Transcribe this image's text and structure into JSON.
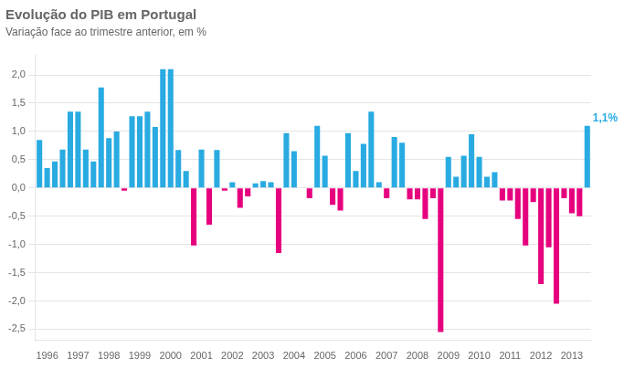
{
  "chart_data": {
    "type": "bar",
    "title": "Evolução do PIB em Portugal",
    "subtitle": "Variação face ao trimestre anterior, em %",
    "annotation": "1,1%",
    "categories": [
      null,
      "1996",
      null,
      null,
      null,
      "1997",
      null,
      null,
      null,
      "1998",
      null,
      null,
      null,
      "1999",
      null,
      null,
      null,
      "2000",
      null,
      null,
      null,
      "2001",
      null,
      null,
      null,
      "2002",
      null,
      null,
      null,
      "2003",
      null,
      null,
      null,
      "2004",
      null,
      null,
      null,
      "2005",
      null,
      null,
      null,
      "2006",
      null,
      null,
      null,
      "2007",
      null,
      null,
      null,
      "2008",
      null,
      null,
      null,
      "2009",
      null,
      null,
      null,
      "2010",
      null,
      null,
      null,
      "2011",
      null,
      null,
      null,
      "2012",
      null,
      null,
      null,
      "2013",
      null,
      null
    ],
    "values": [
      0.85,
      0.35,
      0.47,
      0.68,
      1.35,
      1.35,
      0.68,
      0.47,
      1.78,
      0.88,
      1.0,
      -0.05,
      1.27,
      1.27,
      1.35,
      1.08,
      2.1,
      2.1,
      0.67,
      0.3,
      -1.02,
      0.68,
      -0.65,
      0.67,
      -0.05,
      0.1,
      -0.35,
      -0.15,
      0.08,
      0.12,
      0.1,
      -1.15,
      0.97,
      0.65,
      0.0,
      -0.18,
      1.1,
      0.57,
      -0.3,
      -0.4,
      0.97,
      0.3,
      0.78,
      1.35,
      0.1,
      -0.18,
      0.9,
      0.8,
      -0.2,
      -0.2,
      -0.55,
      -0.18,
      -2.55,
      0.55,
      0.2,
      0.57,
      0.95,
      0.55,
      0.2,
      0.28,
      -0.22,
      -0.22,
      -0.55,
      -1.02,
      -0.25,
      -1.7,
      -1.05,
      -2.05,
      -0.18,
      -0.45,
      -0.5,
      1.1
    ],
    "colors": [
      "#29ABE2",
      "#29ABE2",
      "#29ABE2",
      "#29ABE2",
      "#29ABE2",
      "#29ABE2",
      "#29ABE2",
      "#29ABE2",
      "#29ABE2",
      "#29ABE2",
      "#29ABE2",
      "#E6007E",
      "#29ABE2",
      "#29ABE2",
      "#29ABE2",
      "#29ABE2",
      "#29ABE2",
      "#29ABE2",
      "#29ABE2",
      "#29ABE2",
      "#E6007E",
      "#29ABE2",
      "#E6007E",
      "#29ABE2",
      "#E6007E",
      "#29ABE2",
      "#E6007E",
      "#E6007E",
      "#29ABE2",
      "#29ABE2",
      "#29ABE2",
      "#E6007E",
      "#29ABE2",
      "#29ABE2",
      "#29ABE2",
      "#E6007E",
      "#29ABE2",
      "#29ABE2",
      "#E6007E",
      "#E6007E",
      "#29ABE2",
      "#29ABE2",
      "#29ABE2",
      "#29ABE2",
      "#29ABE2",
      "#E6007E",
      "#29ABE2",
      "#29ABE2",
      "#E6007E",
      "#E6007E",
      "#E6007E",
      "#E6007E",
      "#E6007E",
      "#29ABE2",
      "#29ABE2",
      "#29ABE2",
      "#29ABE2",
      "#29ABE2",
      "#29ABE2",
      "#29ABE2",
      "#E6007E",
      "#E6007E",
      "#E6007E",
      "#E6007E",
      "#E6007E",
      "#E6007E",
      "#E6007E",
      "#E6007E",
      "#E6007E",
      "#E6007E",
      "#E6007E",
      "#29ABE2"
    ],
    "ylim": [
      -2.7,
      2.35
    ],
    "yticks": [
      {
        "value": -2.5,
        "label": "-2,5"
      },
      {
        "value": -2.0,
        "label": "-2,0"
      },
      {
        "value": -1.5,
        "label": "-1,5"
      },
      {
        "value": -1.0,
        "label": "-1,0"
      },
      {
        "value": -0.5,
        "label": "-0,5"
      },
      {
        "value": 0.0,
        "label": "0,0"
      },
      {
        "value": 0.5,
        "label": "0,5"
      },
      {
        "value": 1.0,
        "label": "1,0"
      },
      {
        "value": 1.5,
        "label": "1,5"
      },
      {
        "value": 2.0,
        "label": "2,0"
      }
    ],
    "grid": true
  }
}
